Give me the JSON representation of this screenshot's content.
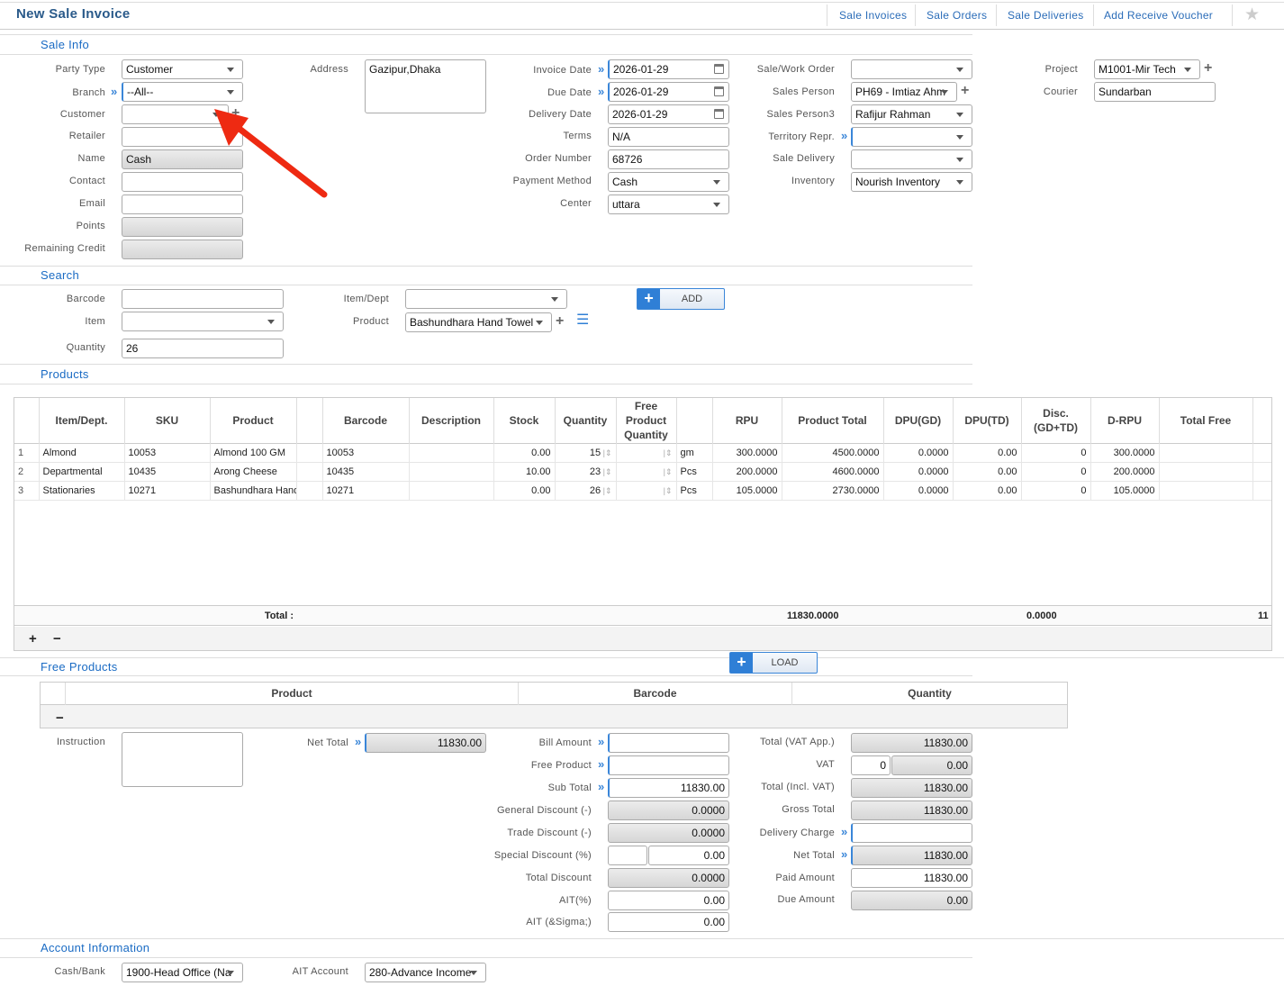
{
  "header": {
    "title": "New Sale Invoice",
    "nav": [
      "Sale Invoices",
      "Sale Orders",
      "Sale Deliveries",
      "Add Receive Voucher"
    ],
    "star_icon": "star-icon"
  },
  "sections": {
    "sale_info": "Sale Info",
    "search": "Search",
    "products": "Products",
    "free_products": "Free Products",
    "account_info": "Account Information"
  },
  "sale_info": {
    "party_type": {
      "label": "Party Type",
      "value": "Customer"
    },
    "branch": {
      "label": "Branch",
      "value": "--All--"
    },
    "customer": {
      "label": "Customer",
      "value": ""
    },
    "retailer": {
      "label": "Retailer",
      "value": ""
    },
    "name": {
      "label": "Name",
      "value": "Cash"
    },
    "contact": {
      "label": "Contact",
      "value": ""
    },
    "email": {
      "label": "Email",
      "value": ""
    },
    "points": {
      "label": "Points",
      "value": ""
    },
    "remaining_credit": {
      "label": "Remaining Credit",
      "value": ""
    },
    "address": {
      "label": "Address",
      "value": "Gazipur,Dhaka"
    },
    "invoice_date": {
      "label": "Invoice Date",
      "value": "2026-01-29"
    },
    "due_date": {
      "label": "Due Date",
      "value": "2026-01-29"
    },
    "delivery_date": {
      "label": "Delivery Date",
      "value": "2026-01-29"
    },
    "terms": {
      "label": "Terms",
      "value": "N/A"
    },
    "order_number": {
      "label": "Order Number",
      "value": "68726"
    },
    "payment_method": {
      "label": "Payment Method",
      "value": "Cash"
    },
    "center": {
      "label": "Center",
      "value": "uttara"
    },
    "sale_work_order": {
      "label": "Sale/Work Order",
      "value": ""
    },
    "sales_person": {
      "label": "Sales Person",
      "value": "PH69 - Imtiaz Ahm"
    },
    "sales_person3": {
      "label": "Sales Person3",
      "value": "Rafijur Rahman"
    },
    "territory_repr": {
      "label": "Territory Repr.",
      "value": ""
    },
    "sale_delivery": {
      "label": "Sale Delivery",
      "value": ""
    },
    "inventory": {
      "label": "Inventory",
      "value": "Nourish Inventory"
    },
    "project": {
      "label": "Project",
      "value": "M1001-Mir Tech"
    },
    "courier": {
      "label": "Courier",
      "value": "Sundarban"
    }
  },
  "search": {
    "barcode": {
      "label": "Barcode",
      "value": ""
    },
    "item": {
      "label": "Item",
      "value": ""
    },
    "quantity": {
      "label": "Quantity",
      "value": "26"
    },
    "item_dept": {
      "label": "Item/Dept",
      "value": ""
    },
    "product": {
      "label": "Product",
      "value": "Bashundhara Hand Towel"
    },
    "add_label": "ADD"
  },
  "products": {
    "columns": [
      "",
      "Item/Dept.",
      "SKU",
      "Product",
      "",
      "Barcode",
      "Description",
      "Stock",
      "Quantity",
      "Free Product Quantity",
      "",
      "RPU",
      "Product Total",
      "DPU(GD)",
      "DPU(TD)",
      "Disc. (GD+TD)",
      "D-RPU",
      "Total Free",
      ""
    ],
    "rows": [
      [
        "1",
        "Almond",
        "10053",
        "Almond 100 GM",
        "",
        "10053",
        "",
        "0.00",
        "15",
        "",
        "gm",
        "300.0000",
        "4500.0000",
        "0.0000",
        "0.00",
        "0",
        "300.0000",
        "",
        ""
      ],
      [
        "2",
        "Departmental",
        "10435",
        "Arong Cheese",
        "",
        "10435",
        "",
        "10.00",
        "23",
        "",
        "Pcs",
        "200.0000",
        "4600.0000",
        "0.0000",
        "0.00",
        "0",
        "200.0000",
        "",
        ""
      ],
      [
        "3",
        "Stationaries",
        "10271",
        "Bashundhara Hand Towel",
        "",
        "10271",
        "",
        "0.00",
        "26",
        "",
        "Pcs",
        "105.0000",
        "2730.0000",
        "0.0000",
        "0.00",
        "0",
        "105.0000",
        "",
        ""
      ]
    ],
    "total_label": "Total :",
    "total_product_total": "11830.0000",
    "total_disc": "0.0000",
    "total_clipped": "11",
    "add": "+",
    "remove": "−"
  },
  "free_products": {
    "load_label": "LOAD",
    "columns": [
      "Product",
      "Barcode",
      "Quantity"
    ],
    "remove": "−"
  },
  "summary": {
    "instruction": {
      "label": "Instruction",
      "value": ""
    },
    "net_total_left": {
      "label": "Net Total",
      "value": "11830.00"
    },
    "bill_amount": {
      "label": "Bill Amount",
      "value": ""
    },
    "free_product": {
      "label": "Free Product",
      "value": ""
    },
    "sub_total": {
      "label": "Sub Total",
      "value": "11830.00"
    },
    "general_discount": {
      "label": "General Discount (-)",
      "value": "0.0000"
    },
    "trade_discount": {
      "label": "Trade Discount (-)",
      "value": "0.0000"
    },
    "special_discount": {
      "label": "Special Discount (%)",
      "percent": "",
      "value": "0.00"
    },
    "total_discount": {
      "label": "Total Discount",
      "value": "0.0000"
    },
    "ait_percent": {
      "label": "AIT(%)",
      "value": "0.00"
    },
    "ait_sigma": {
      "label": "AIT (&Sigma;)",
      "value": "0.00"
    },
    "total_vat_app": {
      "label": "Total (VAT App.)",
      "value": "11830.00"
    },
    "vat": {
      "label": "VAT",
      "percent": "0",
      "value": "0.00"
    },
    "total_incl_vat": {
      "label": "Total (Incl. VAT)",
      "value": "11830.00"
    },
    "gross_total": {
      "label": "Gross Total",
      "value": "11830.00"
    },
    "delivery_charge": {
      "label": "Delivery Charge",
      "value": ""
    },
    "net_total": {
      "label": "Net Total",
      "value": "11830.00"
    },
    "paid_amount": {
      "label": "Paid Amount",
      "value": "11830.00"
    },
    "due_amount": {
      "label": "Due Amount",
      "value": "0.00"
    }
  },
  "account": {
    "cash_bank": {
      "label": "Cash/Bank",
      "value": "1900-Head Office (Na"
    },
    "ait_account": {
      "label": "AIT Account",
      "value": "280-Advance Income"
    }
  },
  "colors": {
    "accent": "#2f7fd6",
    "title": "#2a5a8a",
    "annotation_arrow": "#ee2a12"
  }
}
